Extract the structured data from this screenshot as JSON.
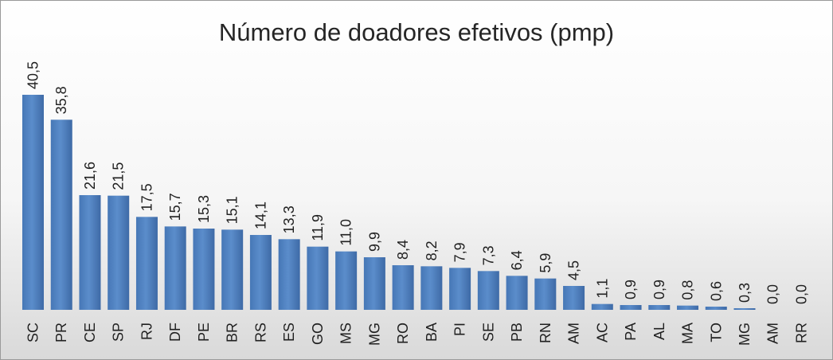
{
  "chart_data": {
    "type": "bar",
    "title": "Número de doadores efetivos (pmp)",
    "categories": [
      "SC",
      "PR",
      "CE",
      "SP",
      "RJ",
      "DF",
      "PE",
      "BR",
      "RS",
      "ES",
      "GO",
      "MS",
      "MG",
      "RO",
      "BA",
      "PI",
      "SE",
      "PB",
      "RN",
      "AM",
      "AC",
      "PA",
      "AL",
      "MA",
      "TO",
      "MG",
      "AM",
      "RR"
    ],
    "values": [
      40.5,
      35.8,
      21.6,
      21.5,
      17.5,
      15.7,
      15.3,
      15.1,
      14.1,
      13.3,
      11.9,
      11.0,
      9.9,
      8.4,
      8.2,
      7.9,
      7.3,
      6.4,
      5.9,
      4.5,
      1.1,
      0.9,
      0.9,
      0.8,
      0.6,
      0.3,
      0.0,
      0.0
    ],
    "value_labels": [
      "40,5",
      "35,8",
      "21,6",
      "21,5",
      "17,5",
      "15,7",
      "15,3",
      "15,1",
      "14,1",
      "13,3",
      "11,9",
      "11,0",
      "9,9",
      "8,4",
      "8,2",
      "7,9",
      "7,3",
      "6,4",
      "5,9",
      "4,5",
      "1,1",
      "0,9",
      "0,9",
      "0,8",
      "0,6",
      "0,3",
      "0,0",
      "0,0"
    ],
    "xlabel": "",
    "ylabel": "",
    "ylim": [
      0,
      40.5
    ],
    "grid": false,
    "legend": "none",
    "bar_color": "#4f81bd"
  }
}
